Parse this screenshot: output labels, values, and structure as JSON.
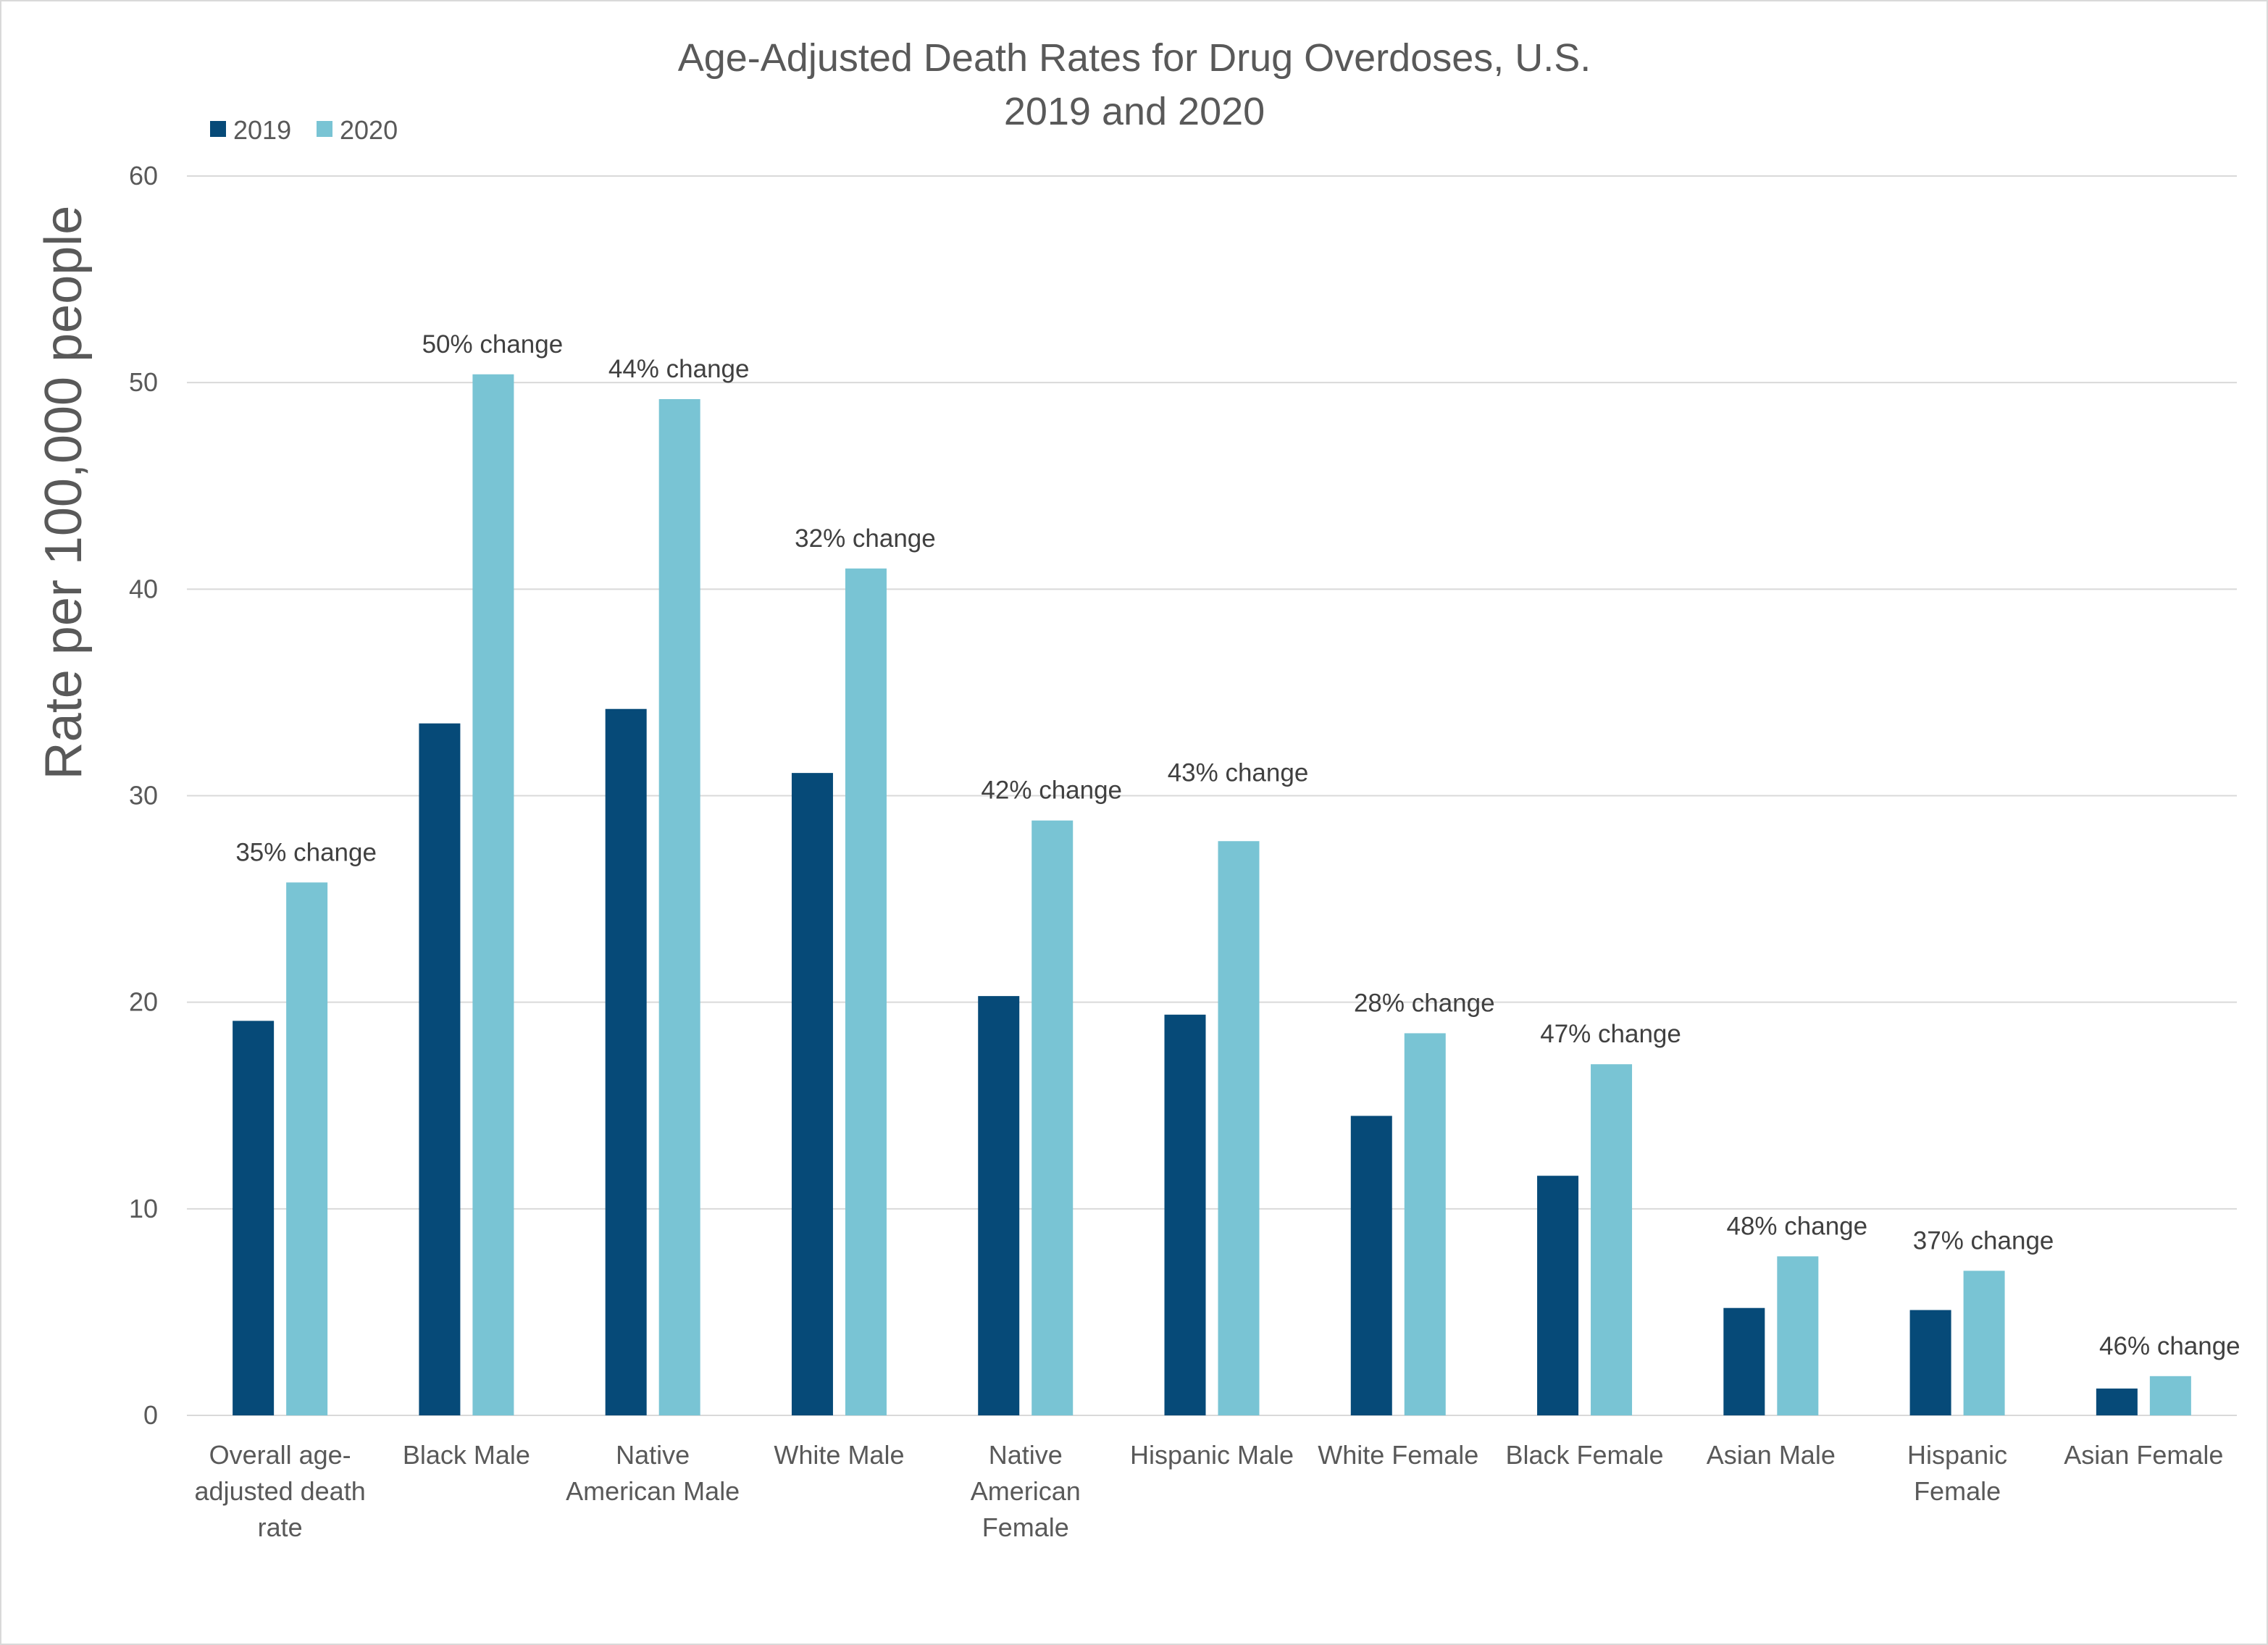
{
  "chart_data": {
    "type": "bar",
    "title": [
      "Age-Adjusted Death Rates for Drug Overdoses, U.S.",
      "2019 and 2020"
    ],
    "ylabel": "Rate per 100,000 people",
    "xlabel": "",
    "ylim": [
      0,
      60
    ],
    "yticks": [
      0,
      10,
      20,
      30,
      40,
      50,
      60
    ],
    "grid": true,
    "legend_position": "top-left",
    "categories": [
      [
        "Overall age-",
        "adjusted death",
        "rate"
      ],
      [
        "Black Male"
      ],
      [
        "Native",
        "American Male"
      ],
      [
        "White Male"
      ],
      [
        "Native",
        "American",
        "Female"
      ],
      [
        "Hispanic Male"
      ],
      [
        "White Female"
      ],
      [
        "Black Female"
      ],
      [
        "Asian Male"
      ],
      [
        "Hispanic",
        "Female"
      ],
      [
        "Asian Female"
      ]
    ],
    "series": [
      {
        "name": "2019",
        "color": "#064a78",
        "values": [
          19.1,
          33.5,
          34.2,
          31.1,
          20.3,
          19.4,
          14.5,
          11.6,
          5.2,
          5.1,
          1.3
        ]
      },
      {
        "name": "2020",
        "color": "#79c4d4",
        "values": [
          25.8,
          50.4,
          49.2,
          41.0,
          28.8,
          27.8,
          18.5,
          17.0,
          7.7,
          7.0,
          1.9
        ]
      }
    ],
    "annotations": [
      "35% change",
      "50% change",
      "44% change",
      "32% change",
      "42% change",
      "43% change",
      "28% change",
      "47% change",
      "48% change",
      "37% change",
      "46% change"
    ]
  }
}
